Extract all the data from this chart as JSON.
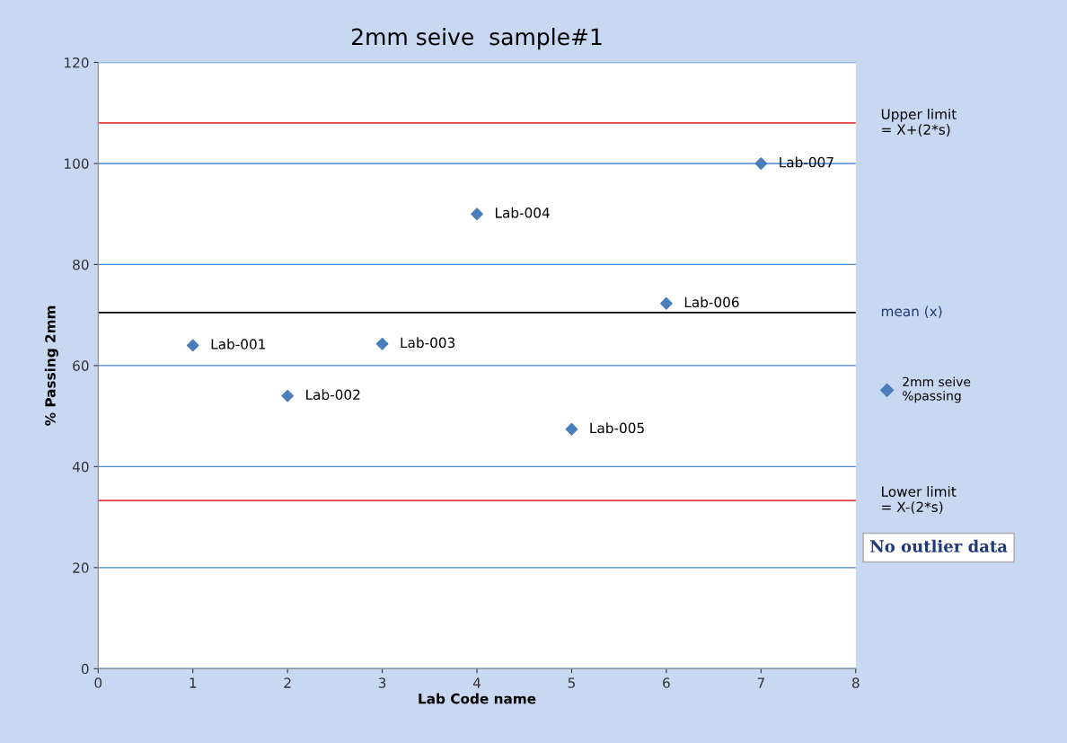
{
  "chart_data": {
    "type": "scatter",
    "title": "2mm seive  sample#1",
    "xlabel": "Lab Code name",
    "ylabel": "% Passing 2mm",
    "x": [
      1,
      2,
      3,
      4,
      5,
      6,
      7
    ],
    "series": [
      {
        "name": "2mm seive\n%passing",
        "color": "#4a7ebb",
        "values": [
          64,
          54,
          64.3,
          90,
          47.4,
          72.3,
          100
        ]
      }
    ],
    "marker": "diamond",
    "xlim": [
      0,
      8
    ],
    "xticks": [
      0,
      1,
      2,
      3,
      4,
      5,
      6,
      7,
      8
    ],
    "ylim": [
      0,
      120
    ],
    "yticks": [
      0,
      20,
      40,
      60,
      80,
      100,
      120
    ],
    "grid": "y",
    "legend": "right",
    "ref_lines": [
      {
        "axis": "y",
        "value": 108,
        "label": "Upper limit\n= X+(2*s)",
        "color": "#e03c3c"
      },
      {
        "axis": "y",
        "value": 70.5,
        "label": "mean (x)",
        "color": "#000000"
      },
      {
        "axis": "y",
        "value": 33.3,
        "label": "Lower limit\n= X-(2*s)",
        "color": "#e03c3c"
      }
    ],
    "annotations": [
      {
        "text": "Lab-001",
        "x": 1,
        "y": 64
      },
      {
        "text": "Lab-002",
        "x": 2,
        "y": 54
      },
      {
        "text": "Lab-003",
        "x": 3,
        "y": 64.3
      },
      {
        "text": "Lab-004",
        "x": 4,
        "y": 90
      },
      {
        "text": "Lab-005",
        "x": 5,
        "y": 47.4
      },
      {
        "text": "Lab-006",
        "x": 6,
        "y": 72.3
      },
      {
        "text": "Lab-007",
        "x": 7,
        "y": 100
      },
      "No outlier data"
    ]
  }
}
